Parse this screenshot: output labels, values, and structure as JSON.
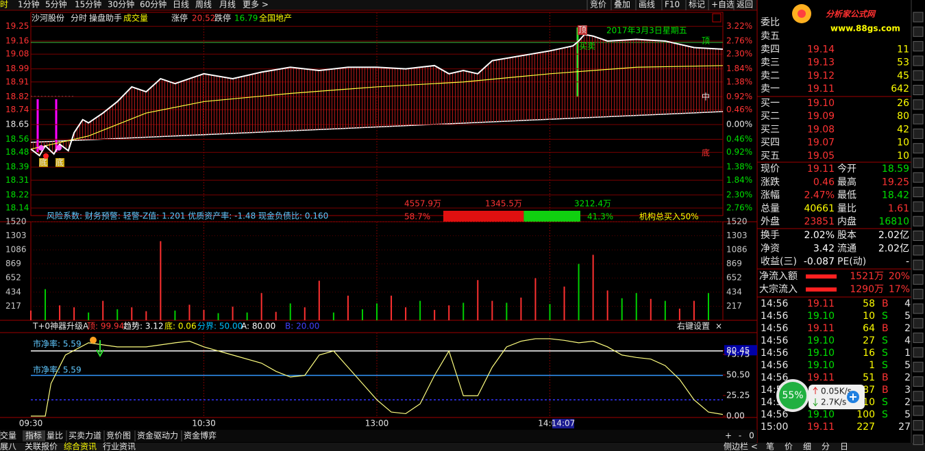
{
  "toolbar": {
    "periods": [
      "时",
      "1分钟",
      "5分钟",
      "15分钟",
      "30分钟",
      "60分钟",
      "日线",
      "周线",
      "月线",
      "更多 >"
    ],
    "tools": [
      "竞价",
      "叠加",
      "画线",
      "F10",
      "标记",
      "+自选",
      "返回"
    ]
  },
  "header": {
    "name": "沙河股份",
    "mode": "分时",
    "assistant": "操盘助手",
    "volume": "成交量",
    "limit_up_label": "涨停",
    "limit_up": "20.52",
    "limit_down_label": "跌停",
    "limit_down": "16.79",
    "sector": "全国地产"
  },
  "price_chart": {
    "ylim": [
      18.098,
      19.327
    ],
    "prev_close": 18.65,
    "yticks": [
      19.25,
      19.16,
      19.08,
      18.99,
      18.91,
      18.82,
      18.74,
      18.65,
      18.56,
      18.48,
      18.39,
      18.31,
      18.22,
      18.14
    ],
    "pct_ticks": [
      "3.22%",
      "2.76%",
      "2.30%",
      "1.84%",
      "1.38%",
      "0.92%",
      "0.46%",
      "0.00%",
      "0.46%",
      "0.92%",
      "1.38%",
      "1.84%",
      "2.30%",
      "2.76%"
    ],
    "xlim": [
      0,
      240
    ],
    "time_ticks": [
      {
        "value": 0,
        "label": "09:30"
      },
      {
        "value": 60,
        "label": "10:30"
      },
      {
        "value": 120,
        "label": "13:00"
      },
      {
        "value": 180,
        "label": "14:00"
      }
    ],
    "cursor_time": "14:07",
    "x": [
      0,
      3,
      5,
      8,
      10,
      13,
      15,
      18,
      20,
      25,
      30,
      35,
      40,
      45,
      50,
      55,
      60,
      70,
      80,
      90,
      100,
      110,
      120,
      130,
      140,
      145,
      150,
      155,
      160,
      170,
      180,
      188,
      190,
      192,
      195,
      200,
      210,
      220,
      225,
      230,
      240
    ],
    "price": [
      18.5,
      18.46,
      18.52,
      18.47,
      18.53,
      18.49,
      18.6,
      18.68,
      18.66,
      18.72,
      18.79,
      18.88,
      18.85,
      18.93,
      18.9,
      18.93,
      18.96,
      18.93,
      18.97,
      19.0,
      18.98,
      19.0,
      19.0,
      18.99,
      19.01,
      18.96,
      18.98,
      18.96,
      19.04,
      19.07,
      19.1,
      19.13,
      19.16,
      19.2,
      19.19,
      19.16,
      19.17,
      19.16,
      19.14,
      19.12,
      19.11
    ],
    "price_color": "#ffffff",
    "avg_x": [
      0,
      20,
      40,
      60,
      90,
      120,
      150,
      180,
      210,
      240
    ],
    "avg": [
      18.5,
      18.58,
      18.72,
      18.79,
      18.84,
      18.88,
      18.91,
      18.96,
      19.0,
      19.01
    ],
    "avg_color": "#ffff40",
    "annotations": {
      "top_signal": "顶",
      "date": "2017年3月3日星期五",
      "top_right": "顶",
      "trade": "买卖",
      "mid": "中",
      "bottom_right": "底",
      "bottom_left_1": "底",
      "bottom_left_2": "底"
    },
    "risk": "风险系数: 财务预警: 轻警-Z值: 1.201 优质资产率: -1.48 现金负债比: 0.160",
    "flow": {
      "buy_amount": "4557.9万",
      "mid_amount": "1345.5万",
      "sell_amount": "3212.4万",
      "buy_pct": {
        "value": 58.7,
        "label": "58.7%"
      },
      "sell_pct": {
        "value": 41.3,
        "label": "41.3%"
      },
      "inst": "机构总买入50%"
    }
  },
  "volume_chart": {
    "ylim": [
      0,
      1520
    ],
    "yticks": [
      1520,
      1303,
      1086,
      869,
      652,
      434,
      217
    ],
    "x": [
      0,
      5,
      10,
      15,
      20,
      25,
      30,
      35,
      40,
      45,
      50,
      55,
      60,
      65,
      70,
      75,
      80,
      85,
      90,
      95,
      100,
      105,
      110,
      115,
      120,
      125,
      130,
      135,
      140,
      145,
      150,
      155,
      160,
      165,
      170,
      175,
      180,
      185,
      190,
      195,
      200,
      205,
      210,
      215,
      220,
      225,
      230,
      235
    ],
    "values": [
      150,
      480,
      230,
      200,
      120,
      300,
      170,
      200,
      140,
      1220,
      150,
      240,
      160,
      110,
      210,
      120,
      420,
      130,
      260,
      200,
      610,
      120,
      380,
      170,
      260,
      380,
      200,
      300,
      160,
      230,
      270,
      620,
      300,
      270,
      350,
      650,
      250,
      520,
      870,
      1010,
      460,
      340,
      420,
      330,
      300,
      180,
      300,
      420
    ],
    "colors": [
      "#ff3030",
      "#00d000",
      "#ff3030",
      "#ff3030",
      "#00d000",
      "#ff3030",
      "#00d000",
      "#ff3030",
      "#ff3030",
      "#ff3030",
      "#00d000",
      "#ff3030",
      "#ff3030",
      "#00d000",
      "#ff3030",
      "#00d000",
      "#ff3030",
      "#ff3030",
      "#00d000",
      "#ff3030",
      "#ff3030",
      "#00d000",
      "#ff3030",
      "#00d000",
      "#00d000",
      "#ff3030",
      "#ff3030",
      "#00d000",
      "#ff3030",
      "#ff3030",
      "#00d000",
      "#ff3030",
      "#ff3030",
      "#00d000",
      "#ff3030",
      "#ff3030",
      "#00d000",
      "#ff3030",
      "#00d000",
      "#ff3030",
      "#ff3030",
      "#00d000",
      "#00d000",
      "#ff3030",
      "#00d000",
      "#ff3030",
      "#ff3030",
      "#00d000"
    ]
  },
  "indicator": {
    "name": "T+0神器升级A",
    "params": [
      "顶: 99.94",
      "趋势: 3.12",
      "底: 0.06",
      "分界: 50.00",
      "A: 80.00",
      "B: 20.00"
    ],
    "param_colors": [
      "#ff3333",
      "#ffffff",
      "#ffff00",
      "#00c0ff",
      "#ffffff",
      "#4040ff"
    ],
    "settings": "右键设置",
    "close": "×",
    "pb_labels": [
      "市净率: 5.59",
      "市净率: 5.59"
    ],
    "ylim": [
      0,
      100
    ],
    "yticks": [
      80.45,
      75.75,
      {
        "value": 50.5,
        "label": "50.50"
      },
      25.25,
      {
        "value": 0,
        "label": "0.00"
      }
    ],
    "x": [
      0,
      5,
      7,
      12,
      20,
      30,
      40,
      50,
      55,
      60,
      70,
      80,
      85,
      90,
      95,
      100,
      105,
      110,
      115,
      120,
      125,
      130,
      135,
      140,
      145,
      150,
      155,
      160,
      165,
      170,
      175,
      180,
      185,
      190,
      195,
      200,
      205,
      210,
      215,
      220,
      225,
      230,
      235,
      240
    ],
    "values": [
      0,
      0,
      40,
      75,
      90,
      85,
      85,
      90,
      92,
      85,
      75,
      65,
      55,
      48,
      50,
      75,
      80,
      60,
      40,
      20,
      5,
      3,
      15,
      50,
      80,
      25,
      25,
      60,
      85,
      92,
      95,
      95,
      93,
      90,
      92,
      85,
      75,
      72,
      70,
      62,
      45,
      20,
      5,
      2
    ],
    "color": "#ffff80",
    "lines": [
      {
        "value": 80,
        "color": "#ffffff"
      },
      {
        "value": 50,
        "color": "#3399ff"
      },
      {
        "value": 20,
        "color": "#3333ff",
        "dashed": true
      }
    ]
  },
  "logo": {
    "name": "分析家公式网",
    "url": "www.88gs.com"
  },
  "order_book": {
    "ratio_label": "委比",
    "price_color": "#ff3333",
    "volume_color": "#ffff00",
    "asks": [
      {
        "label": "卖五"
      },
      {
        "label": "卖四",
        "price": "19.14",
        "volume": "11"
      },
      {
        "label": "卖三",
        "price": "19.13",
        "volume": "53"
      },
      {
        "label": "卖二",
        "price": "19.12",
        "volume": "45"
      },
      {
        "label": "卖一",
        "price": "19.11",
        "volume": "642"
      }
    ],
    "bids": [
      {
        "label": "买一",
        "price": "19.10",
        "volume": "26"
      },
      {
        "label": "买二",
        "price": "19.09",
        "volume": "80"
      },
      {
        "label": "买三",
        "price": "19.08",
        "volume": "42"
      },
      {
        "label": "买四",
        "price": "19.07",
        "volume": "10"
      },
      {
        "label": "买五",
        "price": "19.05",
        "volume": "10"
      }
    ]
  },
  "stats": [
    [
      {
        "label": "现价",
        "value": "19.11",
        "color": "#ff3333"
      },
      {
        "label": "今开",
        "value": "18.59",
        "color": "#00e000"
      }
    ],
    [
      {
        "label": "涨跌",
        "value": "0.46",
        "color": "#ff3333"
      },
      {
        "label": "最高",
        "value": "19.25",
        "color": "#ff3333"
      }
    ],
    [
      {
        "label": "涨幅",
        "value": "2.47%",
        "color": "#ff3333"
      },
      {
        "label": "最低",
        "value": "18.42",
        "color": "#00e000"
      }
    ],
    [
      {
        "label": "总量",
        "value": "40661",
        "color": "#ffff00"
      },
      {
        "label": "量比",
        "value": "1.61",
        "color": "#ff3333"
      }
    ],
    [
      {
        "label": "外盘",
        "value": "23851",
        "color": "#ff3333"
      },
      {
        "label": "内盘",
        "value": "16810",
        "color": "#00e000"
      }
    ],
    [
      {
        "label": "换手",
        "value": "2.02%",
        "color": "#ffffff"
      },
      {
        "label": "股本",
        "value": "2.02亿",
        "color": "#ffffff"
      }
    ],
    [
      {
        "label": "净资",
        "value": "3.42",
        "color": "#ffffff"
      },
      {
        "label": "流通",
        "value": "2.02亿",
        "color": "#ffffff"
      }
    ],
    [
      {
        "label": "收益(三)",
        "value": "-0.087",
        "color": "#ffffff"
      },
      {
        "label": "PE(动)",
        "value": "-",
        "color": "#ffffff"
      }
    ]
  ],
  "flows": [
    {
      "label": "净流入额",
      "amount": "1521万",
      "pct": "20%"
    },
    {
      "label": "大宗流入",
      "amount": "1290万",
      "pct": "17%"
    }
  ],
  "ticks": [
    {
      "time": "14:56",
      "price": "19.11",
      "volume": "58",
      "side": "B",
      "count": "4",
      "color": "#ff3333"
    },
    {
      "time": "14:56",
      "price": "19.10",
      "volume": "10",
      "side": "S",
      "count": "5",
      "color": "#00e000"
    },
    {
      "time": "14:56",
      "price": "19.11",
      "volume": "64",
      "side": "B",
      "count": "2",
      "color": "#ff3333"
    },
    {
      "time": "14:56",
      "price": "19.10",
      "volume": "27",
      "side": "S",
      "count": "4",
      "color": "#00e000"
    },
    {
      "time": "14:56",
      "price": "19.10",
      "volume": "16",
      "side": "S",
      "count": "1",
      "color": "#00e000"
    },
    {
      "time": "14:56",
      "price": "19.10",
      "volume": "1",
      "side": "S",
      "count": "5",
      "color": "#00e000"
    },
    {
      "time": "14:56",
      "price": "19.11",
      "volume": "51",
      "side": "B",
      "count": "2",
      "color": "#ff3333"
    },
    {
      "time": "14:56",
      "volume": "87",
      "side": "B",
      "count": "3",
      "color": "#ff3333"
    },
    {
      "time": "14:56",
      "price": "19.10",
      "volume": "10",
      "side": "S",
      "count": "2",
      "color": "#00e000"
    },
    {
      "time": "14:56",
      "price": "19.10",
      "volume": "100",
      "side": "S",
      "count": "5",
      "color": "#00e000"
    },
    {
      "time": "15:00",
      "price": "19.11",
      "volume": "227",
      "count": "27",
      "color": "#ff3333"
    }
  ],
  "widget": {
    "percent": "55%",
    "up": "0.05K/s",
    "down": "2.7K/s"
  },
  "tabs": [
    "成交量",
    "指标",
    "量比",
    "买卖力道",
    "竞价图",
    "资金驱动力",
    "资金博弈"
  ],
  "zoom": [
    "+",
    "-",
    "0"
  ],
  "bottom_tabs": [
    "汇展八",
    "关联报价",
    "综合资讯",
    "行业资讯"
  ],
  "sidebar": "侧边栏 <",
  "side_tabs": [
    "笔",
    "价",
    "细",
    "分",
    "日"
  ]
}
